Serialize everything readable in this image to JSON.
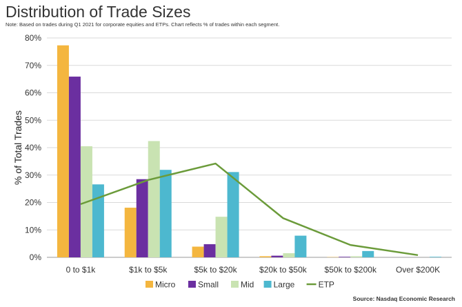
{
  "title": "Distribution of Trade Sizes",
  "note": "Note: Based on trades during Q1 2021 for corporate equities and ETPs. Chart reflects % of trades within each segment.",
  "source": "Source: Nasdaq Economic Research",
  "chart_data": {
    "type": "bar",
    "title": "Distribution of Trade Sizes",
    "ylabel": "% of Total Trades",
    "xlabel": "",
    "ylim": [
      0,
      80
    ],
    "yticks": [
      "0%",
      "10%",
      "20%",
      "30%",
      "40%",
      "50%",
      "60%",
      "70%",
      "80%"
    ],
    "categories": [
      "0 to $1k",
      "$1k to $5k",
      "$5k to $20k",
      "$20k to $50k",
      "$50k to $200k",
      "Over $200K"
    ],
    "series": [
      {
        "name": "Micro",
        "type": "bar",
        "color": "#f4b63f",
        "values": [
          77.3,
          18.1,
          3.9,
          0.4,
          0.1,
          0.0
        ]
      },
      {
        "name": "Small",
        "type": "bar",
        "color": "#6b2fa0",
        "values": [
          65.9,
          28.5,
          4.8,
          0.6,
          0.2,
          0.0
        ]
      },
      {
        "name": "Mid",
        "type": "bar",
        "color": "#c9e3b2",
        "values": [
          40.5,
          42.4,
          14.8,
          1.5,
          0.4,
          0.0
        ]
      },
      {
        "name": "Large",
        "type": "bar",
        "color": "#4db8cf",
        "values": [
          26.6,
          31.9,
          31.1,
          7.9,
          2.3,
          0.2
        ]
      },
      {
        "name": "ETP",
        "type": "line",
        "color": "#6b9b3a",
        "values": [
          19.4,
          28.2,
          34.2,
          14.3,
          4.5,
          0.8
        ]
      }
    ],
    "legend": "bottom",
    "grid": true
  }
}
